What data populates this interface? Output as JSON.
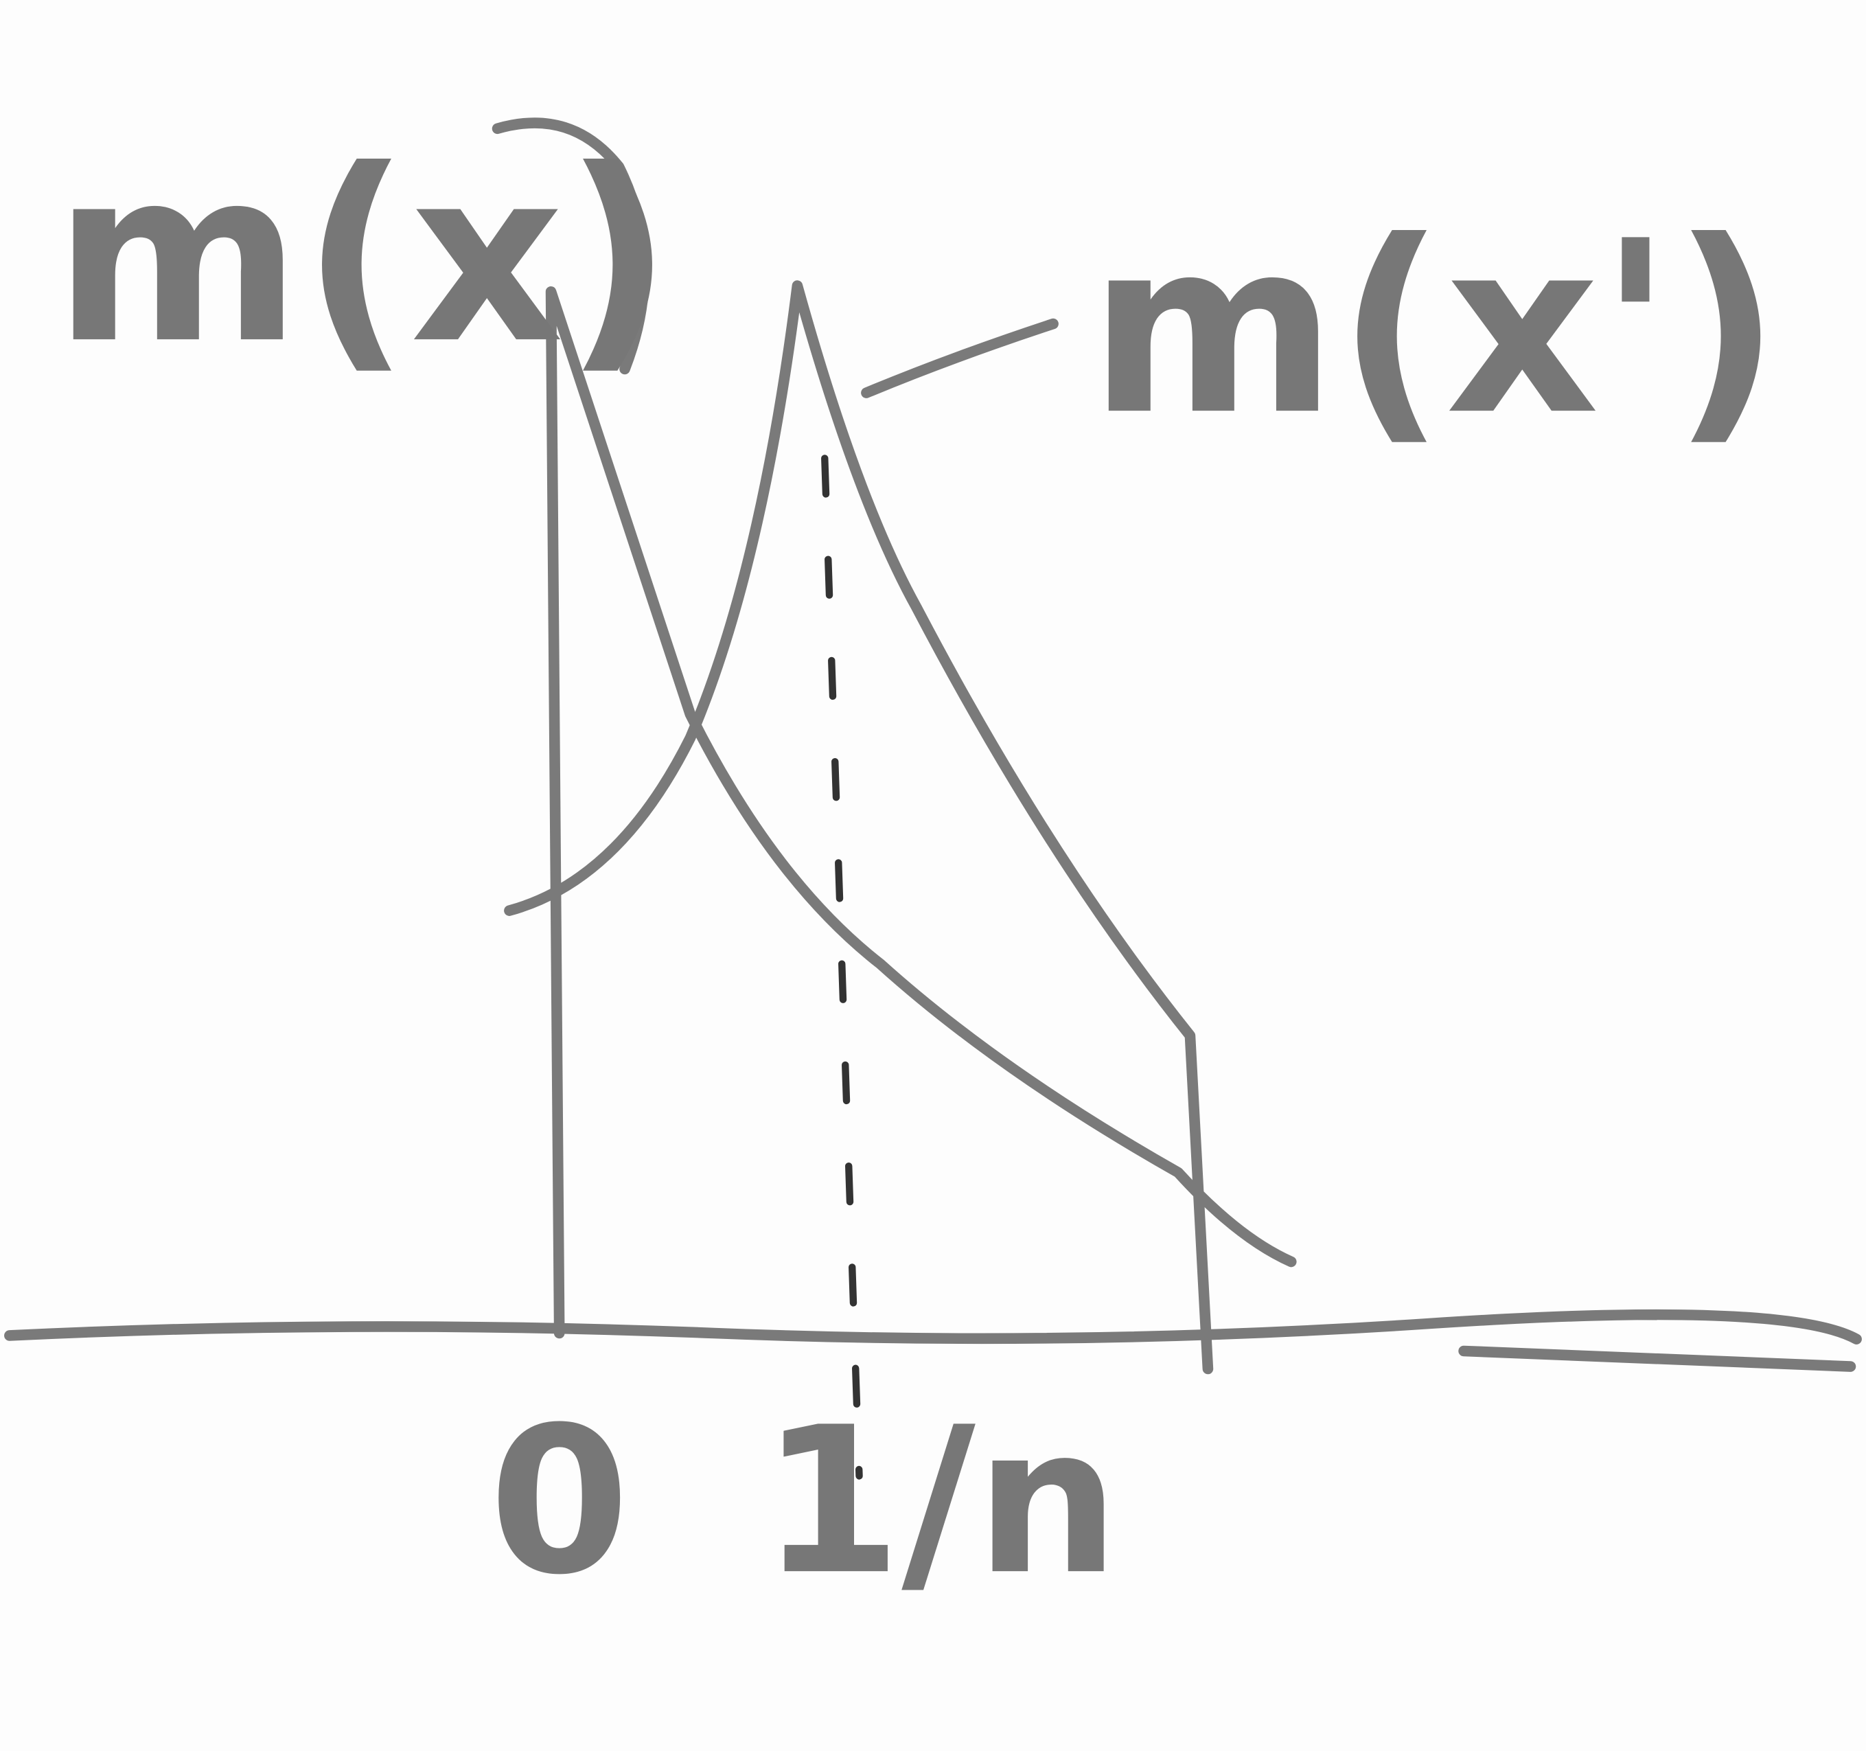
{
  "curves": [
    {
      "label": "m(x)"
    },
    {
      "label": "m(x')"
    }
  ],
  "axis": {
    "ticks": [
      "0",
      "1/n"
    ]
  }
}
